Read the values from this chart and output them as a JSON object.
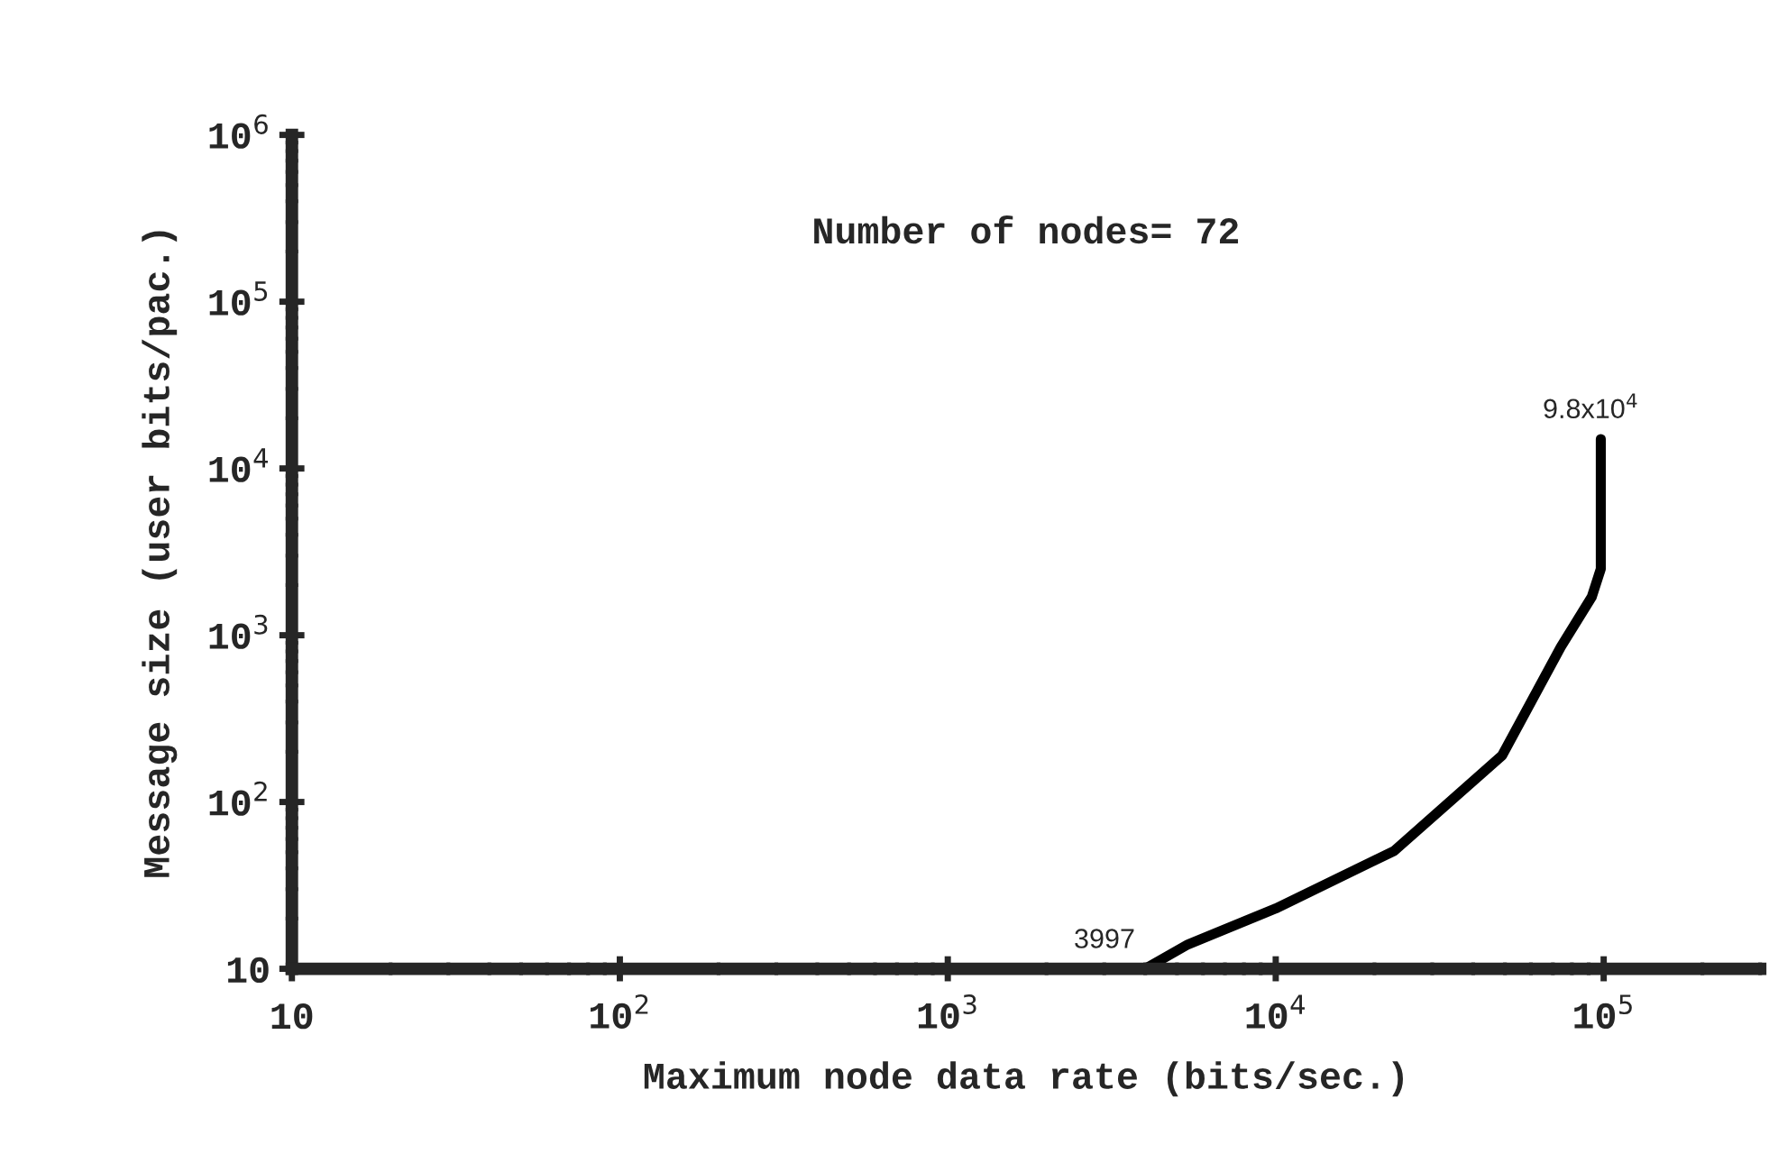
{
  "chart_data": {
    "type": "line",
    "xlabel": "Maximum node data rate (bits/sec.)",
    "ylabel": "Message size (user bits/pac.)",
    "log": "xy",
    "series": [
      {
        "color": "#000000",
        "x": [
          3997,
          5400,
          10000,
          23000,
          49000,
          74000,
          92000,
          98000,
          98000
        ],
        "values": [
          10,
          14,
          23,
          51,
          190,
          850,
          1700,
          2500,
          15000
        ]
      }
    ],
    "xlim": [
      10,
      300000
    ],
    "ylim": [
      10,
      1000000
    ],
    "xticks": [
      10,
      {
        "value": 100,
        "label": "10$^{2}$"
      },
      {
        "value": 1000,
        "label": "10$^{3}$"
      },
      {
        "value": 10000,
        "label": "10$^{4}$"
      },
      {
        "value": 100000,
        "label": "10$^{5}$"
      }
    ],
    "yticks": [
      10,
      {
        "value": 100,
        "label": "10$^{2}$"
      },
      {
        "value": 1000,
        "label": "10$^{3}$"
      },
      {
        "value": 10000,
        "label": "10$^{4}$"
      },
      {
        "value": 100000,
        "label": "10$^{5}$"
      },
      {
        "value": 1000000,
        "label": "10$^{6}$"
      }
    ],
    "grid": false,
    "legend": false,
    "marker": "none",
    "line_style": "solid",
    "annotations": [
      "Number of nodes= 72",
      {
        "text": "3997",
        "x": 3997,
        "y": 10
      },
      {
        "text": "9.8x10$^{4}$",
        "x": 98000,
        "y": 15000
      }
    ]
  }
}
